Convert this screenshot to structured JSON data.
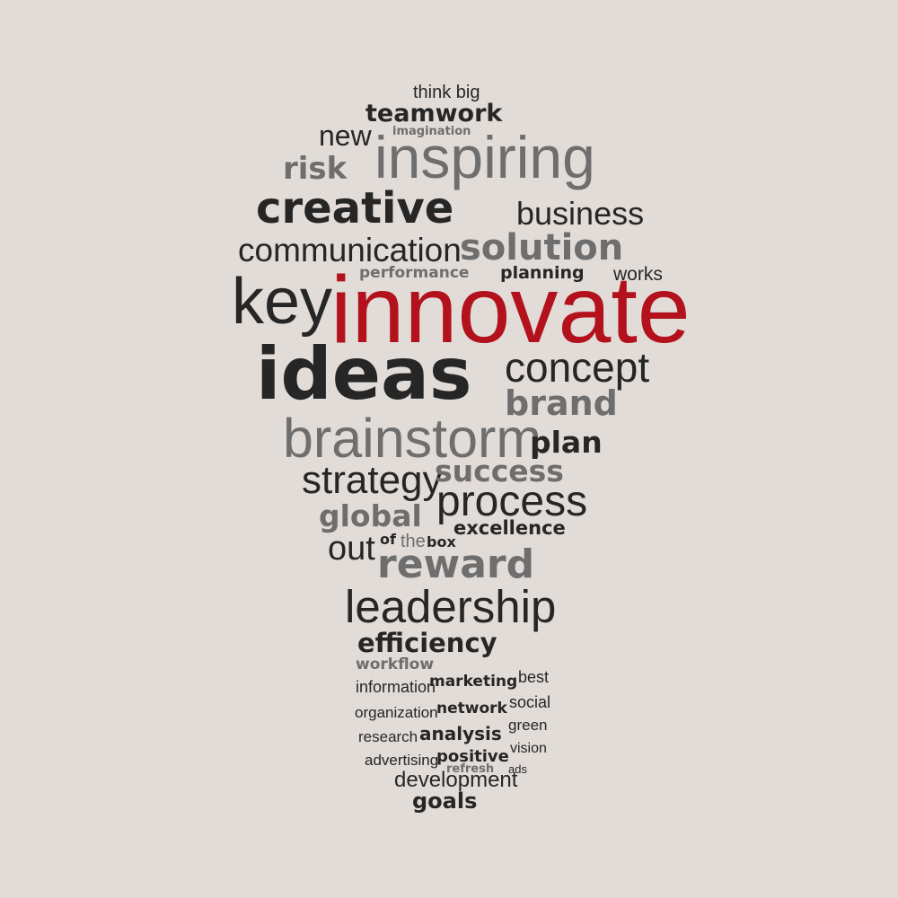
{
  "words": {
    "think_big": "think big",
    "teamwork": "teamwork",
    "imagination": "imagination",
    "new": "new",
    "inspiring": "inspiring",
    "risk": "risk",
    "creative": "creative",
    "business": "business",
    "communication": "communication",
    "solution": "solution",
    "performance": "performance",
    "planning": "planning",
    "works": "works",
    "key": "key",
    "innovate": "innovate",
    "ideas": "ideas",
    "concept": "concept",
    "brand": "brand",
    "brainstorm": "brainstorm",
    "plan": "plan",
    "strategy": "strategy",
    "success": "success",
    "process": "process",
    "global": "global",
    "excellence": "excellence",
    "out": "out",
    "of": "of",
    "the": "the",
    "box": "box",
    "reward": "reward",
    "leadership": "leadership",
    "efficiency": "efficiency",
    "workflow": "workflow",
    "information": "information",
    "marketing": "marketing",
    "best": "best",
    "organization": "organization",
    "network": "network",
    "social": "social",
    "research": "research",
    "analysis": "analysis",
    "green": "green",
    "advertising": "advertising",
    "positive": "positive",
    "vision": "vision",
    "refresh": "refresh",
    "ads": "ads",
    "development": "development",
    "goals": "goals"
  },
  "colors": {
    "background": "#e2dcd8",
    "dark_text": "#262626",
    "gray_text": "#6e6e6e",
    "accent_red": "#b3121c"
  }
}
